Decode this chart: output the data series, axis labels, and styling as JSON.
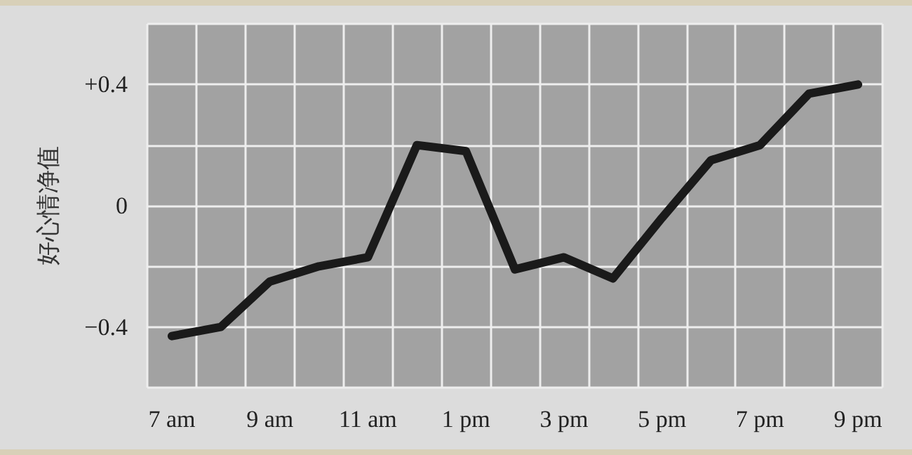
{
  "chart_data": {
    "type": "line",
    "ylabel": "好心情净值",
    "categories": [
      "7 am",
      null,
      "9 am",
      null,
      "11 am",
      null,
      "1 pm",
      null,
      "3 pm",
      null,
      "5 pm",
      null,
      "7 pm",
      null,
      "9 pm"
    ],
    "series": [
      {
        "color": "#1a1a1a",
        "values": [
          -0.43,
          -0.4,
          -0.25,
          -0.2,
          -0.17,
          0.2,
          0.18,
          -0.21,
          -0.17,
          -0.24,
          -0.04,
          0.15,
          0.2,
          0.37,
          0.4
        ]
      }
    ],
    "ylim": [
      -0.6,
      0.6
    ],
    "yticks": [
      {
        "value": -0.6,
        "label": null
      },
      {
        "value": -0.4,
        "label": "−0.4"
      },
      {
        "value": -0.2,
        "label": null
      },
      0,
      {
        "value": 0.2,
        "label": null
      },
      {
        "value": 0.4,
        "label": "+0.4"
      },
      {
        "value": 0.6,
        "label": null
      }
    ],
    "grid": true,
    "marker": "none",
    "line_style": "solid"
  }
}
